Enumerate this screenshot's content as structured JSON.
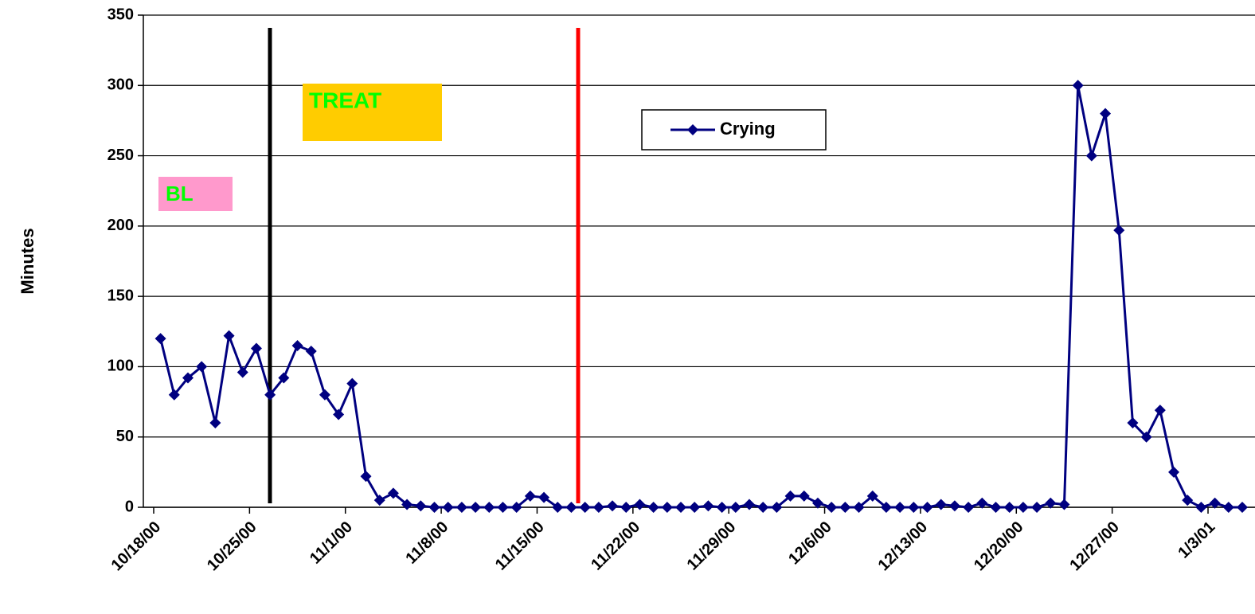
{
  "chart_data": {
    "type": "line",
    "y_label": "Minutes",
    "annotations": [
      "BL",
      "TREAT"
    ],
    "categories": [
      "10/18/00",
      null,
      null,
      null,
      null,
      null,
      null,
      "10/25/00",
      null,
      null,
      null,
      null,
      null,
      null,
      "11/1/00",
      null,
      null,
      null,
      null,
      null,
      null,
      "11/8/00",
      null,
      null,
      null,
      null,
      null,
      null,
      "11/15/00",
      null,
      null,
      null,
      null,
      null,
      null,
      "11/22/00",
      null,
      null,
      null,
      null,
      null,
      null,
      "11/29/00",
      null,
      null,
      null,
      null,
      null,
      null,
      "12/6/00",
      null,
      null,
      null,
      null,
      null,
      null,
      "12/13/00",
      null,
      null,
      null,
      null,
      null,
      null,
      "12/20/00",
      null,
      null,
      null,
      null,
      null,
      null,
      "12/27/00",
      null,
      null,
      null,
      null,
      null,
      null,
      "1/3/01",
      null,
      null
    ],
    "series": [
      {
        "name": "Crying",
        "color": "#000080",
        "values": [
          120,
          80,
          92,
          100,
          60,
          122,
          96,
          113,
          80,
          92,
          115,
          111,
          80,
          66,
          88,
          22,
          5,
          10,
          2,
          1,
          0,
          0,
          0,
          0,
          0,
          0,
          0,
          8,
          7,
          0,
          0,
          0,
          0,
          1,
          0,
          2,
          0,
          0,
          0,
          0,
          1,
          0,
          0,
          2,
          0,
          0,
          8,
          8,
          3,
          0,
          0,
          0,
          8,
          0,
          0,
          0,
          0,
          2,
          1,
          0,
          3,
          0,
          0,
          0,
          0,
          3,
          2,
          300,
          250,
          280,
          197,
          60,
          50,
          69,
          25,
          5,
          0,
          3,
          0,
          0
        ]
      }
    ],
    "ylim": [
      0,
      350
    ],
    "yticks": [
      0,
      50,
      100,
      150,
      200,
      250,
      300,
      350
    ],
    "grid": true
  }
}
